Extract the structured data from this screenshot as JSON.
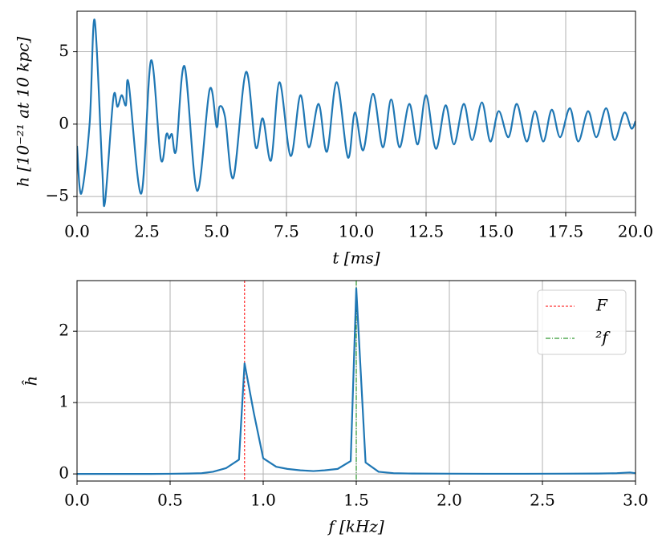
{
  "chart_data": [
    {
      "type": "line",
      "xlabel": "t [ms]",
      "ylabel": "h [10⁻²¹ at 10 kpc]",
      "x": [
        0,
        0.15,
        0.45,
        0.63,
        0.9,
        1.0,
        1.3,
        1.45,
        1.6,
        1.75,
        1.85,
        2.3,
        2.65,
        3.0,
        3.2,
        3.3,
        3.4,
        3.55,
        3.85,
        4.3,
        4.75,
        5.0,
        5.1,
        5.3,
        5.6,
        6.05,
        6.4,
        6.65,
        6.95,
        7.25,
        7.65,
        8.0,
        8.3,
        8.65,
        8.95,
        9.3,
        9.7,
        9.95,
        10.25,
        10.6,
        10.95,
        11.25,
        11.55,
        11.9,
        12.2,
        12.5,
        12.85,
        13.2,
        13.5,
        13.85,
        14.15,
        14.5,
        14.8,
        15.1,
        15.45,
        15.75,
        16.1,
        16.4,
        16.7,
        17.0,
        17.3,
        17.65,
        17.95,
        18.3,
        18.6,
        18.95,
        19.25,
        19.6,
        19.85,
        20.0
      ],
      "series": [
        {
          "color": "#1f77b4",
          "values": [
            -1.5,
            -4.8,
            0,
            7.2,
            -3,
            -5.4,
            1.8,
            1.2,
            2.0,
            1.3,
            2.8,
            -4.8,
            4.4,
            -2.4,
            -0.7,
            -1.0,
            -0.7,
            -1.8,
            4.0,
            -4.6,
            2.4,
            -0.2,
            1.2,
            0.5,
            -3.7,
            3.6,
            -1.6,
            0.4,
            -2.5,
            2.9,
            -2.2,
            2.0,
            -1.6,
            1.4,
            -1.9,
            2.9,
            -2.3,
            0.8,
            -1.8,
            2.1,
            -1.6,
            1.7,
            -1.6,
            1.4,
            -1.4,
            2.0,
            -1.7,
            1.3,
            -1.4,
            1.4,
            -1.1,
            1.5,
            -1.2,
            0.9,
            -0.9,
            1.4,
            -1.2,
            0.9,
            -1.2,
            1.0,
            -0.9,
            1.1,
            -1.2,
            0.9,
            -0.9,
            1.1,
            -1.1,
            0.8,
            -0.3,
            0.2
          ]
        }
      ],
      "xlim": [
        0,
        20
      ],
      "ylim": [
        -6.1,
        7.8
      ],
      "xticks": [
        {
          "value": 0,
          "label": "0.0"
        },
        2.5,
        {
          "value": 5,
          "label": "5.0"
        },
        7.5,
        {
          "value": 10,
          "label": "10.0"
        },
        12.5,
        {
          "value": 15,
          "label": "15.0"
        },
        17.5,
        {
          "value": 20,
          "label": "20.0"
        }
      ],
      "yticks": [
        {
          "value": -5,
          "label": "−5"
        },
        0,
        5
      ],
      "grid": true
    },
    {
      "type": "line",
      "xlabel": "f [kHz]",
      "ylabel": "ĥ",
      "x": [
        0,
        0.1,
        0.2,
        0.3,
        0.4,
        0.5,
        0.6,
        0.67,
        0.73,
        0.8,
        0.87,
        0.9,
        0.95,
        1.0,
        1.07,
        1.13,
        1.2,
        1.27,
        1.33,
        1.4,
        1.47,
        1.5,
        1.55,
        1.62,
        1.7,
        1.8,
        2.0,
        2.2,
        2.4,
        2.6,
        2.8,
        2.9,
        2.97,
        3.0
      ],
      "series": [
        {
          "color": "#1f77b4",
          "values": [
            0,
            0,
            0,
            0,
            0,
            0.002,
            0.005,
            0.01,
            0.03,
            0.08,
            0.2,
            1.55,
            0.85,
            0.22,
            0.1,
            0.07,
            0.05,
            0.04,
            0.05,
            0.07,
            0.18,
            2.6,
            0.16,
            0.03,
            0.01,
            0.005,
            0.003,
            0.002,
            0.002,
            0.003,
            0.005,
            0.01,
            0.02,
            0.01
          ]
        }
      ],
      "vlines": [
        {
          "name": "F",
          "x": 0.9,
          "color": "#ff0000",
          "dash": "3,2"
        },
        {
          "name": "²f",
          "x": 1.5,
          "color": "#008000",
          "dash": "6,2,1,2"
        }
      ],
      "legend": "upper right",
      "xlim": [
        0,
        3
      ],
      "ylim": [
        -0.1,
        2.71
      ],
      "xticks": [
        {
          "value": 0,
          "label": "0.0"
        },
        0.5,
        {
          "value": 1,
          "label": "1.0"
        },
        1.5,
        {
          "value": 2,
          "label": "2.0"
        },
        2.5,
        {
          "value": 3,
          "label": "3.0"
        }
      ],
      "yticks": [
        0,
        1,
        2
      ],
      "grid": true
    }
  ]
}
